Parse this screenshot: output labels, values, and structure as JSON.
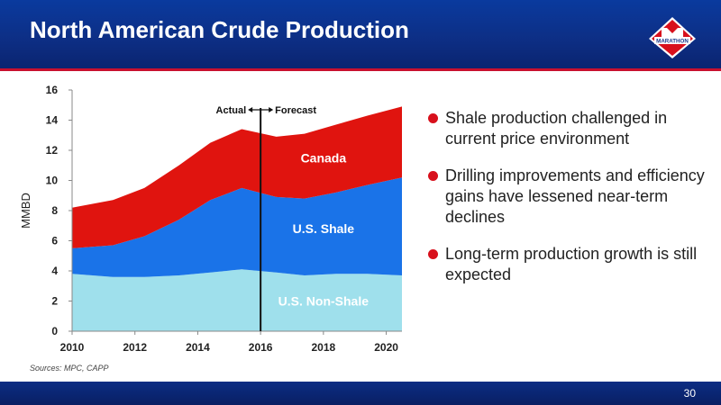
{
  "slide": {
    "title": "North American Crude Production",
    "logo_text": "MARATHON",
    "page_number": "30",
    "sources": "Sources:  MPC, CAPP"
  },
  "bullets": [
    "Shale production challenged in current price environment",
    "Drilling improvements and efficiency gains have lessened near-term declines",
    "Long-term production growth is still expected"
  ],
  "colors": {
    "header_blue": "#0d2f86",
    "accent_red": "#c8102e",
    "canada": "#e0140f",
    "us_shale": "#1a73e8",
    "us_non_shale": "#9fe0ec"
  },
  "chart_data": {
    "type": "area",
    "stacked": true,
    "ylabel": "MMBD",
    "xlabel": "",
    "xlim": [
      2010,
      2020.5
    ],
    "ylim": [
      0,
      16
    ],
    "xticks": [
      2010,
      2012,
      2014,
      2016,
      2018,
      2020
    ],
    "yticks": [
      0,
      2,
      4,
      6,
      8,
      10,
      12,
      14,
      16
    ],
    "divider_x": 2016,
    "divider_labels": {
      "left": "Actual",
      "right": "Forecast"
    },
    "x": [
      2010,
      2011.3,
      2012.3,
      2013.4,
      2014.4,
      2015.4,
      2016.5,
      2017.4,
      2018.4,
      2019.4,
      2020.5
    ],
    "series": [
      {
        "name": "U.S. Non-Shale",
        "color": "#9fe0ec",
        "label_color": "#ffffff",
        "label_x": 2018,
        "label_y": 1.7,
        "values": [
          3.8,
          3.6,
          3.6,
          3.7,
          3.9,
          4.1,
          3.9,
          3.7,
          3.8,
          3.8,
          3.7
        ]
      },
      {
        "name": "U.S. Shale",
        "color": "#1a73e8",
        "label_color": "#ffffff",
        "label_x": 2018,
        "label_y": 6.5,
        "values": [
          1.7,
          2.1,
          2.7,
          3.7,
          4.8,
          5.4,
          5.0,
          5.1,
          5.4,
          5.9,
          6.5
        ]
      },
      {
        "name": "Canada",
        "color": "#e0140f",
        "label_color": "#ffffff",
        "label_x": 2018,
        "label_y": 11.2,
        "values": [
          2.7,
          3.0,
          3.2,
          3.6,
          3.8,
          3.9,
          4.0,
          4.3,
          4.5,
          4.6,
          4.7
        ]
      }
    ]
  }
}
